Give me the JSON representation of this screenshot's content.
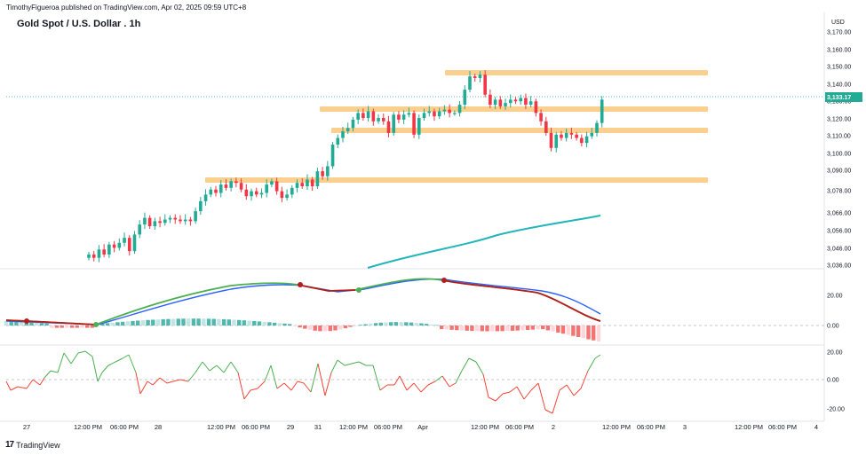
{
  "header": {
    "publisher": "TimothyFigueroa published on TradingView.com, Apr 02, 2025 09:59 UTC+8",
    "symbol": "Gold Spot / U.S. Dollar . 1h",
    "currency": "USD"
  },
  "footer": {
    "brand": "TradingView",
    "brand_mark": "17"
  },
  "colors": {
    "up": "#22ab94",
    "down": "#f23645",
    "zone": "#fbcf8e",
    "ema": "#22b5b9",
    "macd_fast": "#4caf50",
    "macd_signal_down": "#b71c1c",
    "macd_line": "#2962ff",
    "rsi_up": "#4caf50",
    "rsi_down": "#f44336"
  },
  "chart_data": [
    {
      "type": "candlestick",
      "title": "Gold Spot / U.S. Dollar . 1h",
      "y_unit": "USD",
      "price_ticks": [
        "3,170.00",
        "3,160.00",
        "3,150.00",
        "3,140.00",
        "3,130.00",
        "3,120.00",
        "3,110.00",
        "3,100.00",
        "3,090.00",
        "3,078.00",
        "3,066.00",
        "3,056.00",
        "3,046.00",
        "3,036.00"
      ],
      "current_price": "3,133.17",
      "x_ticks": [
        "27",
        "12:00 PM",
        "06:00 PM",
        "28",
        "12:00 PM",
        "06:00 PM",
        "29",
        "31",
        "12:00 PM",
        "06:00 PM",
        "Apr",
        "12:00 PM",
        "06:00 PM",
        "2",
        "12:00 PM",
        "06:00 PM",
        "3",
        "12:00 PM",
        "06:00 PM",
        "4"
      ],
      "resistance_zones": [
        3147,
        3126,
        3113,
        3085
      ],
      "closes": [
        3040,
        3038,
        3043,
        3040,
        3046,
        3044,
        3047,
        3050,
        3042,
        3052,
        3058,
        3062,
        3057,
        3060,
        3059,
        3061,
        3062,
        3061,
        3060,
        3061,
        3060,
        3066,
        3072,
        3076,
        3079,
        3077,
        3082,
        3080,
        3084,
        3083,
        3079,
        3075,
        3078,
        3076,
        3077,
        3082,
        3084,
        3078,
        3074,
        3076,
        3080,
        3083,
        3081,
        3085,
        3081,
        3090,
        3087,
        3093,
        3106,
        3110,
        3114,
        3116,
        3121,
        3125,
        3122,
        3126,
        3120,
        3122,
        3120,
        3113,
        3124,
        3121,
        3124,
        3125,
        3112,
        3122,
        3125,
        3126,
        3123,
        3126,
        3127,
        3125,
        3125,
        3130,
        3139,
        3147,
        3146,
        3148,
        3136,
        3130,
        3133,
        3129,
        3131,
        3133,
        3132,
        3134,
        3130,
        3132,
        3125,
        3120,
        3113,
        3104,
        3112,
        3110,
        3113,
        3112,
        3110,
        3107,
        3111,
        3113,
        3119,
        3133
      ],
      "ema_series": {
        "name": "",
        "values": [
          3036,
          3056,
          3066
        ]
      }
    },
    {
      "type": "line",
      "subtype": "macd",
      "y_ticks": [
        "20.00",
        "0.00"
      ]
    },
    {
      "type": "line",
      "subtype": "oscillator",
      "y_ticks": [
        "20.00",
        "0.00",
        "-20.00"
      ]
    }
  ]
}
